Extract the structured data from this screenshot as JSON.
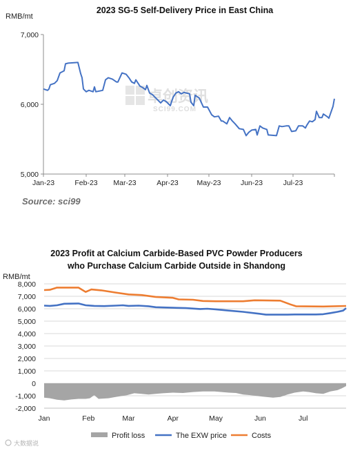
{
  "chart_data": [
    {
      "type": "line",
      "title": "2023  SG-5 Self-Delivery Price in East China",
      "ylabel": "RMB/mt",
      "ylim": [
        5000,
        7000
      ],
      "yticks": [
        "5,000",
        "6,000",
        "7,000"
      ],
      "x_ticks": [
        "Jan-23",
        "Feb-23",
        "Mar-23",
        "Apr-23",
        "May-23",
        "Jun-23",
        "Jul-23"
      ],
      "grid": false,
      "source": "Source: sci99",
      "watermark": "卓创资讯",
      "watermark_sub": "SCI99.COM",
      "series": [
        {
          "color": "#4472C4",
          "points": [
            [
              "2023-01-01",
              6220
            ],
            [
              "2023-01-04",
              6200
            ],
            [
              "2023-01-05",
              6220
            ],
            [
              "2023-01-06",
              6280
            ],
            [
              "2023-01-09",
              6300
            ],
            [
              "2023-01-11",
              6340
            ],
            [
              "2023-01-13",
              6450
            ],
            [
              "2023-01-16",
              6480
            ],
            [
              "2023-01-17",
              6580
            ],
            [
              "2023-01-19",
              6590
            ],
            [
              "2023-01-26",
              6600
            ],
            [
              "2023-01-28",
              6440
            ],
            [
              "2023-01-29",
              6380
            ],
            [
              "2023-01-30",
              6220
            ],
            [
              "2023-02-01",
              6180
            ],
            [
              "2023-02-03",
              6200
            ],
            [
              "2023-02-06",
              6180
            ],
            [
              "2023-02-07",
              6250
            ],
            [
              "2023-02-08",
              6180
            ],
            [
              "2023-02-13",
              6200
            ],
            [
              "2023-02-15",
              6350
            ],
            [
              "2023-02-17",
              6380
            ],
            [
              "2023-02-20",
              6360
            ],
            [
              "2023-02-23",
              6320
            ],
            [
              "2023-02-24",
              6320
            ],
            [
              "2023-02-27",
              6450
            ],
            [
              "2023-03-02",
              6430
            ],
            [
              "2023-03-04",
              6380
            ],
            [
              "2023-03-06",
              6320
            ],
            [
              "2023-03-08",
              6300
            ],
            [
              "2023-03-09",
              6350
            ],
            [
              "2023-03-12",
              6260
            ],
            [
              "2023-03-14",
              6240
            ],
            [
              "2023-03-16",
              6210
            ],
            [
              "2023-03-17",
              6270
            ],
            [
              "2023-03-19",
              6160
            ],
            [
              "2023-03-21",
              6140
            ],
            [
              "2023-03-24",
              6080
            ],
            [
              "2023-03-27",
              6020
            ],
            [
              "2023-03-29",
              6060
            ],
            [
              "2023-03-31",
              6040
            ],
            [
              "2023-04-03",
              5980
            ],
            [
              "2023-04-05",
              6100
            ],
            [
              "2023-04-07",
              6160
            ],
            [
              "2023-04-09",
              6180
            ],
            [
              "2023-04-11",
              6150
            ],
            [
              "2023-04-13",
              6170
            ],
            [
              "2023-04-17",
              6150
            ],
            [
              "2023-04-18",
              6030
            ],
            [
              "2023-04-20",
              5980
            ],
            [
              "2023-04-21",
              6130
            ],
            [
              "2023-04-24",
              6090
            ],
            [
              "2023-04-27",
              5960
            ],
            [
              "2023-04-30",
              5960
            ],
            [
              "2023-05-03",
              5850
            ],
            [
              "2023-05-05",
              5820
            ],
            [
              "2023-05-08",
              5830
            ],
            [
              "2023-05-10",
              5760
            ],
            [
              "2023-05-11",
              5760
            ],
            [
              "2023-05-14",
              5720
            ],
            [
              "2023-05-16",
              5810
            ],
            [
              "2023-05-18",
              5760
            ],
            [
              "2023-05-20",
              5720
            ],
            [
              "2023-05-23",
              5650
            ],
            [
              "2023-05-26",
              5640
            ],
            [
              "2023-05-28",
              5550
            ],
            [
              "2023-05-30",
              5600
            ],
            [
              "2023-06-01",
              5630
            ],
            [
              "2023-06-04",
              5640
            ],
            [
              "2023-06-05",
              5560
            ],
            [
              "2023-06-07",
              5690
            ],
            [
              "2023-06-09",
              5660
            ],
            [
              "2023-06-12",
              5640
            ],
            [
              "2023-06-13",
              5560
            ],
            [
              "2023-06-19",
              5550
            ],
            [
              "2023-06-21",
              5690
            ],
            [
              "2023-06-23",
              5680
            ],
            [
              "2023-06-26",
              5690
            ],
            [
              "2023-06-28",
              5690
            ],
            [
              "2023-06-30",
              5610
            ],
            [
              "2023-07-03",
              5620
            ],
            [
              "2023-07-05",
              5690
            ],
            [
              "2023-07-08",
              5690
            ],
            [
              "2023-07-10",
              5660
            ],
            [
              "2023-07-11",
              5700
            ],
            [
              "2023-07-13",
              5760
            ],
            [
              "2023-07-15",
              5750
            ],
            [
              "2023-07-17",
              5780
            ],
            [
              "2023-07-18",
              5900
            ],
            [
              "2023-07-20",
              5810
            ],
            [
              "2023-07-22",
              5810
            ],
            [
              "2023-07-23",
              5860
            ],
            [
              "2023-07-26",
              5820
            ],
            [
              "2023-07-27",
              5800
            ],
            [
              "2023-07-30",
              5970
            ],
            [
              "2023-07-31",
              6080
            ]
          ]
        }
      ]
    },
    {
      "type": "line",
      "title_lines": [
        "2023  Profit at Calcium Carbide-Based PVC Powder Producers",
        "who Purchase Calcium Carbide Outside in Shandong"
      ],
      "ylabel": "RMB/mt",
      "ylim": [
        -2000,
        8000
      ],
      "yticks": [
        "-2,000",
        "-1,000",
        "0",
        "1,000",
        "2,000",
        "3,000",
        "4,000",
        "5,000",
        "6,000",
        "7,000",
        "8,000"
      ],
      "x_ticks": [
        "Jan",
        "Feb",
        "Mar",
        "Apr",
        "May",
        "Jun",
        "Jul"
      ],
      "grid": true,
      "legend_position": "bottom",
      "logo": "大数据说",
      "series": [
        {
          "name": "Profit loss",
          "type": "area",
          "color": "#a5a5a5",
          "points": [
            [
              "2023-01-01",
              -1150
            ],
            [
              "2023-01-05",
              -1200
            ],
            [
              "2023-01-10",
              -1320
            ],
            [
              "2023-01-15",
              -1380
            ],
            [
              "2023-01-20",
              -1300
            ],
            [
              "2023-01-25",
              -1250
            ],
            [
              "2023-01-30",
              -1250
            ],
            [
              "2023-02-02",
              -1200
            ],
            [
              "2023-02-05",
              -950
            ],
            [
              "2023-02-08",
              -1250
            ],
            [
              "2023-02-15",
              -1200
            ],
            [
              "2023-02-20",
              -1100
            ],
            [
              "2023-02-28",
              -950
            ],
            [
              "2023-03-05",
              -800
            ],
            [
              "2023-03-10",
              -850
            ],
            [
              "2023-03-15",
              -900
            ],
            [
              "2023-03-20",
              -850
            ],
            [
              "2023-03-25",
              -800
            ],
            [
              "2023-04-01",
              -750
            ],
            [
              "2023-04-08",
              -780
            ],
            [
              "2023-04-15",
              -700
            ],
            [
              "2023-04-22",
              -650
            ],
            [
              "2023-04-30",
              -650
            ],
            [
              "2023-05-05",
              -700
            ],
            [
              "2023-05-10",
              -750
            ],
            [
              "2023-05-15",
              -780
            ],
            [
              "2023-05-20",
              -900
            ],
            [
              "2023-05-25",
              -950
            ],
            [
              "2023-06-01",
              -1050
            ],
            [
              "2023-06-05",
              -1100
            ],
            [
              "2023-06-10",
              -1150
            ],
            [
              "2023-06-15",
              -1100
            ],
            [
              "2023-06-20",
              -900
            ],
            [
              "2023-06-25",
              -750
            ],
            [
              "2023-07-01",
              -650
            ],
            [
              "2023-07-05",
              -700
            ],
            [
              "2023-07-10",
              -800
            ],
            [
              "2023-07-15",
              -850
            ],
            [
              "2023-07-20",
              -650
            ],
            [
              "2023-07-25",
              -550
            ],
            [
              "2023-07-28",
              -400
            ],
            [
              "2023-07-31",
              -220
            ]
          ]
        },
        {
          "name": "The EXW price",
          "color": "#4472C4",
          "points": [
            [
              "2023-01-01",
              6250
            ],
            [
              "2023-01-05",
              6230
            ],
            [
              "2023-01-10",
              6280
            ],
            [
              "2023-01-15",
              6400
            ],
            [
              "2023-01-25",
              6420
            ],
            [
              "2023-01-30",
              6280
            ],
            [
              "2023-02-05",
              6230
            ],
            [
              "2023-02-12",
              6210
            ],
            [
              "2023-02-20",
              6250
            ],
            [
              "2023-02-25",
              6280
            ],
            [
              "2023-03-01",
              6230
            ],
            [
              "2023-03-08",
              6250
            ],
            [
              "2023-03-15",
              6200
            ],
            [
              "2023-03-20",
              6120
            ],
            [
              "2023-04-01",
              6080
            ],
            [
              "2023-04-10",
              6050
            ],
            [
              "2023-04-20",
              5980
            ],
            [
              "2023-04-25",
              6000
            ],
            [
              "2023-05-01",
              5950
            ],
            [
              "2023-05-10",
              5850
            ],
            [
              "2023-05-20",
              5750
            ],
            [
              "2023-05-31",
              5600
            ],
            [
              "2023-06-05",
              5520
            ],
            [
              "2023-06-20",
              5520
            ],
            [
              "2023-06-25",
              5540
            ],
            [
              "2023-07-10",
              5540
            ],
            [
              "2023-07-15",
              5560
            ],
            [
              "2023-07-20",
              5650
            ],
            [
              "2023-07-25",
              5750
            ],
            [
              "2023-07-29",
              5850
            ],
            [
              "2023-07-31",
              6050
            ]
          ]
        },
        {
          "name": "Costs",
          "color": "#ED7D31",
          "points": [
            [
              "2023-01-01",
              7500
            ],
            [
              "2023-01-05",
              7520
            ],
            [
              "2023-01-10",
              7700
            ],
            [
              "2023-01-25",
              7700
            ],
            [
              "2023-01-30",
              7350
            ],
            [
              "2023-02-03",
              7550
            ],
            [
              "2023-02-10",
              7480
            ],
            [
              "2023-02-20",
              7300
            ],
            [
              "2023-03-01",
              7150
            ],
            [
              "2023-03-10",
              7100
            ],
            [
              "2023-03-20",
              6950
            ],
            [
              "2023-04-01",
              6880
            ],
            [
              "2023-04-05",
              6750
            ],
            [
              "2023-04-15",
              6720
            ],
            [
              "2023-04-22",
              6620
            ],
            [
              "2023-05-01",
              6600
            ],
            [
              "2023-05-20",
              6600
            ],
            [
              "2023-05-28",
              6680
            ],
            [
              "2023-06-15",
              6650
            ],
            [
              "2023-06-22",
              6350
            ],
            [
              "2023-06-26",
              6200
            ],
            [
              "2023-07-15",
              6180
            ],
            [
              "2023-07-31",
              6220
            ]
          ]
        }
      ]
    }
  ]
}
